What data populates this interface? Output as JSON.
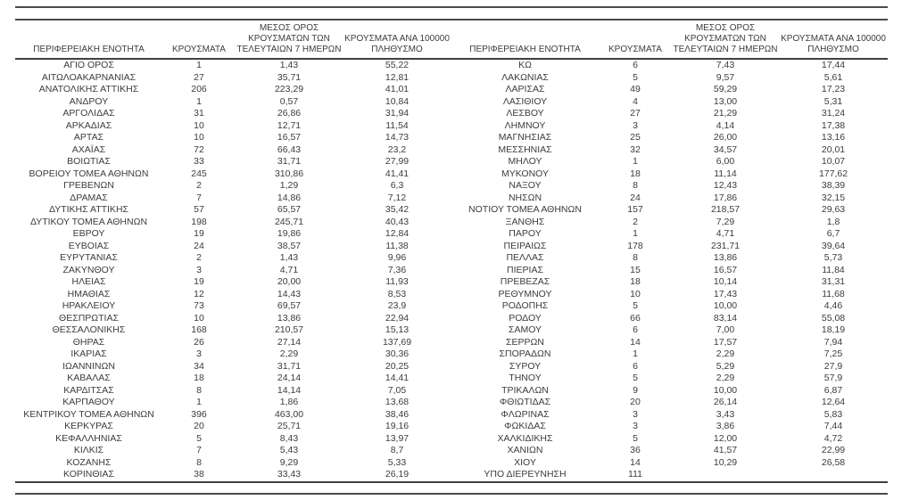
{
  "table": {
    "headers": {
      "region": "ΠΕΡΙΦΕΡΕΙΑΚΗ ΕΝΟΤΗΤΑ",
      "cases": "ΚΡΟΥΣΜΑΤΑ",
      "avg7": "ΜΕΣΟΣ ΟΡΟΣ\nΚΡΟΥΣΜΑΤΩΝ ΤΩΝ\nΤΕΛΕΥΤΑΙΩΝ 7 ΗΜΕΡΩΝ",
      "per100k": "ΚΡΟΥΣΜΑΤΑ ΑΝΑ 100000\nΠΛΗΘΥΣΜΟ"
    },
    "left_rows": [
      [
        "ΑΓΙΟ ΟΡΟΣ",
        "1",
        "1,43",
        "55,22"
      ],
      [
        "ΑΙΤΩΛΟΑΚΑΡΝΑΝΙΑΣ",
        "27",
        "35,71",
        "12,81"
      ],
      [
        "ΑΝΑΤΟΛΙΚΗΣ ΑΤΤΙΚΗΣ",
        "206",
        "223,29",
        "41,01"
      ],
      [
        "ΑΝΔΡΟΥ",
        "1",
        "0,57",
        "10,84"
      ],
      [
        "ΑΡΓΟΛΙΔΑΣ",
        "31",
        "26,86",
        "31,94"
      ],
      [
        "ΑΡΚΑΔΙΑΣ",
        "10",
        "12,71",
        "11,54"
      ],
      [
        "ΑΡΤΑΣ",
        "10",
        "16,57",
        "14,73"
      ],
      [
        "ΑΧΑΪΑΣ",
        "72",
        "66,43",
        "23,2"
      ],
      [
        "ΒΟΙΩΤΙΑΣ",
        "33",
        "31,71",
        "27,99"
      ],
      [
        "ΒΟΡΕΙΟΥ ΤΟΜΕΑ ΑΘΗΝΩΝ",
        "245",
        "310,86",
        "41,41"
      ],
      [
        "ΓΡΕΒΕΝΩΝ",
        "2",
        "1,29",
        "6,3"
      ],
      [
        "ΔΡΑΜΑΣ",
        "7",
        "14,86",
        "7,12"
      ],
      [
        "ΔΥΤΙΚΗΣ ΑΤΤΙΚΗΣ",
        "57",
        "65,57",
        "35,42"
      ],
      [
        "ΔΥΤΙΚΟΥ ΤΟΜΕΑ ΑΘΗΝΩΝ",
        "198",
        "245,71",
        "40,43"
      ],
      [
        "ΕΒΡΟΥ",
        "19",
        "19,86",
        "12,84"
      ],
      [
        "ΕΥΒΟΙΑΣ",
        "24",
        "38,57",
        "11,38"
      ],
      [
        "ΕΥΡΥΤΑΝΙΑΣ",
        "2",
        "1,43",
        "9,96"
      ],
      [
        "ΖΑΚΥΝΘΟΥ",
        "3",
        "4,71",
        "7,36"
      ],
      [
        "ΗΛΕΙΑΣ",
        "19",
        "20,00",
        "11,93"
      ],
      [
        "ΗΜΑΘΙΑΣ",
        "12",
        "14,43",
        "8,53"
      ],
      [
        "ΗΡΑΚΛΕΙΟΥ",
        "73",
        "69,57",
        "23,9"
      ],
      [
        "ΘΕΣΠΡΩΤΙΑΣ",
        "10",
        "13,86",
        "22,94"
      ],
      [
        "ΘΕΣΣΑΛΟΝΙΚΗΣ",
        "168",
        "210,57",
        "15,13"
      ],
      [
        "ΘΗΡΑΣ",
        "26",
        "27,14",
        "137,69"
      ],
      [
        "ΙΚΑΡΙΑΣ",
        "3",
        "2,29",
        "30,36"
      ],
      [
        "ΙΩΑΝΝΙΝΩΝ",
        "34",
        "31,71",
        "20,25"
      ],
      [
        "ΚΑΒΑΛΑΣ",
        "18",
        "24,14",
        "14,41"
      ],
      [
        "ΚΑΡΔΙΤΣΑΣ",
        "8",
        "14,14",
        "7,05"
      ],
      [
        "ΚΑΡΠΑΘΟΥ",
        "1",
        "1,86",
        "13,68"
      ],
      [
        "ΚΕΝΤΡΙΚΟΥ ΤΟΜΕΑ ΑΘΗΝΩΝ",
        "396",
        "463,00",
        "38,46"
      ],
      [
        "ΚΕΡΚΥΡΑΣ",
        "20",
        "25,71",
        "19,16"
      ],
      [
        "ΚΕΦΑΛΛΗΝΙΑΣ",
        "5",
        "8,43",
        "13,97"
      ],
      [
        "ΚΙΛΚΙΣ",
        "7",
        "5,43",
        "8,7"
      ],
      [
        "ΚΟΖΑΝΗΣ",
        "8",
        "9,29",
        "5,33"
      ],
      [
        "ΚΟΡΙΝΘΙΑΣ",
        "38",
        "33,43",
        "26,19"
      ]
    ],
    "right_rows": [
      [
        "ΚΩ",
        "6",
        "7,43",
        "17,44"
      ],
      [
        "ΛΑΚΩΝΙΑΣ",
        "5",
        "9,57",
        "5,61"
      ],
      [
        "ΛΑΡΙΣΑΣ",
        "49",
        "59,29",
        "17,23"
      ],
      [
        "ΛΑΣΙΘΙΟΥ",
        "4",
        "13,00",
        "5,31"
      ],
      [
        "ΛΕΣΒΟΥ",
        "27",
        "21,29",
        "31,24"
      ],
      [
        "ΛΗΜΝΟΥ",
        "3",
        "4,14",
        "17,38"
      ],
      [
        "ΜΑΓΝΗΣΙΑΣ",
        "25",
        "26,00",
        "13,16"
      ],
      [
        "ΜΕΣΣΗΝΙΑΣ",
        "32",
        "34,57",
        "20,01"
      ],
      [
        "ΜΗΛΟΥ",
        "1",
        "6,00",
        "10,07"
      ],
      [
        "ΜΥΚΟΝΟΥ",
        "18",
        "11,14",
        "177,62"
      ],
      [
        "ΝΑΞΟΥ",
        "8",
        "12,43",
        "38,39"
      ],
      [
        "ΝΗΣΩΝ",
        "24",
        "17,86",
        "32,15"
      ],
      [
        "ΝΟΤΙΟΥ ΤΟΜΕΑ ΑΘΗΝΩΝ",
        "157",
        "218,57",
        "29,63"
      ],
      [
        "ΞΑΝΘΗΣ",
        "2",
        "7,29",
        "1,8"
      ],
      [
        "ΠΑΡΟΥ",
        "1",
        "4,71",
        "6,7"
      ],
      [
        "ΠΕΙΡΑΙΩΣ",
        "178",
        "231,71",
        "39,64"
      ],
      [
        "ΠΕΛΛΑΣ",
        "8",
        "13,86",
        "5,73"
      ],
      [
        "ΠΙΕΡΙΑΣ",
        "15",
        "16,57",
        "11,84"
      ],
      [
        "ΠΡΕΒΕΖΑΣ",
        "18",
        "10,14",
        "31,31"
      ],
      [
        "ΡΕΘΥΜΝΟΥ",
        "10",
        "17,43",
        "11,68"
      ],
      [
        "ΡΟΔΟΠΗΣ",
        "5",
        "10,00",
        "4,46"
      ],
      [
        "ΡΟΔΟΥ",
        "66",
        "83,14",
        "55,08"
      ],
      [
        "ΣΑΜΟΥ",
        "6",
        "7,00",
        "18,19"
      ],
      [
        "ΣΕΡΡΩΝ",
        "14",
        "17,57",
        "7,94"
      ],
      [
        "ΣΠΟΡΑΔΩΝ",
        "1",
        "2,29",
        "7,25"
      ],
      [
        "ΣΥΡΟΥ",
        "6",
        "5,29",
        "27,9"
      ],
      [
        "ΤΗΝΟΥ",
        "5",
        "2,29",
        "57,9"
      ],
      [
        "ΤΡΙΚΑΛΩΝ",
        "9",
        "10,00",
        "6,87"
      ],
      [
        "ΦΘΙΩΤΙΔΑΣ",
        "20",
        "26,14",
        "12,64"
      ],
      [
        "ΦΛΩΡΙΝΑΣ",
        "3",
        "3,43",
        "5,83"
      ],
      [
        "ΦΩΚΙΔΑΣ",
        "3",
        "3,86",
        "7,44"
      ],
      [
        "ΧΑΛΚΙΔΙΚΗΣ",
        "5",
        "12,00",
        "4,72"
      ],
      [
        "ΧΑΝΙΩΝ",
        "36",
        "41,57",
        "22,99"
      ],
      [
        "ΧΙΟΥ",
        "14",
        "10,29",
        "26,58"
      ],
      [
        "ΥΠΟ ΔΙΕΡΕΥΝΗΣΗ",
        "111",
        "",
        ""
      ]
    ]
  }
}
